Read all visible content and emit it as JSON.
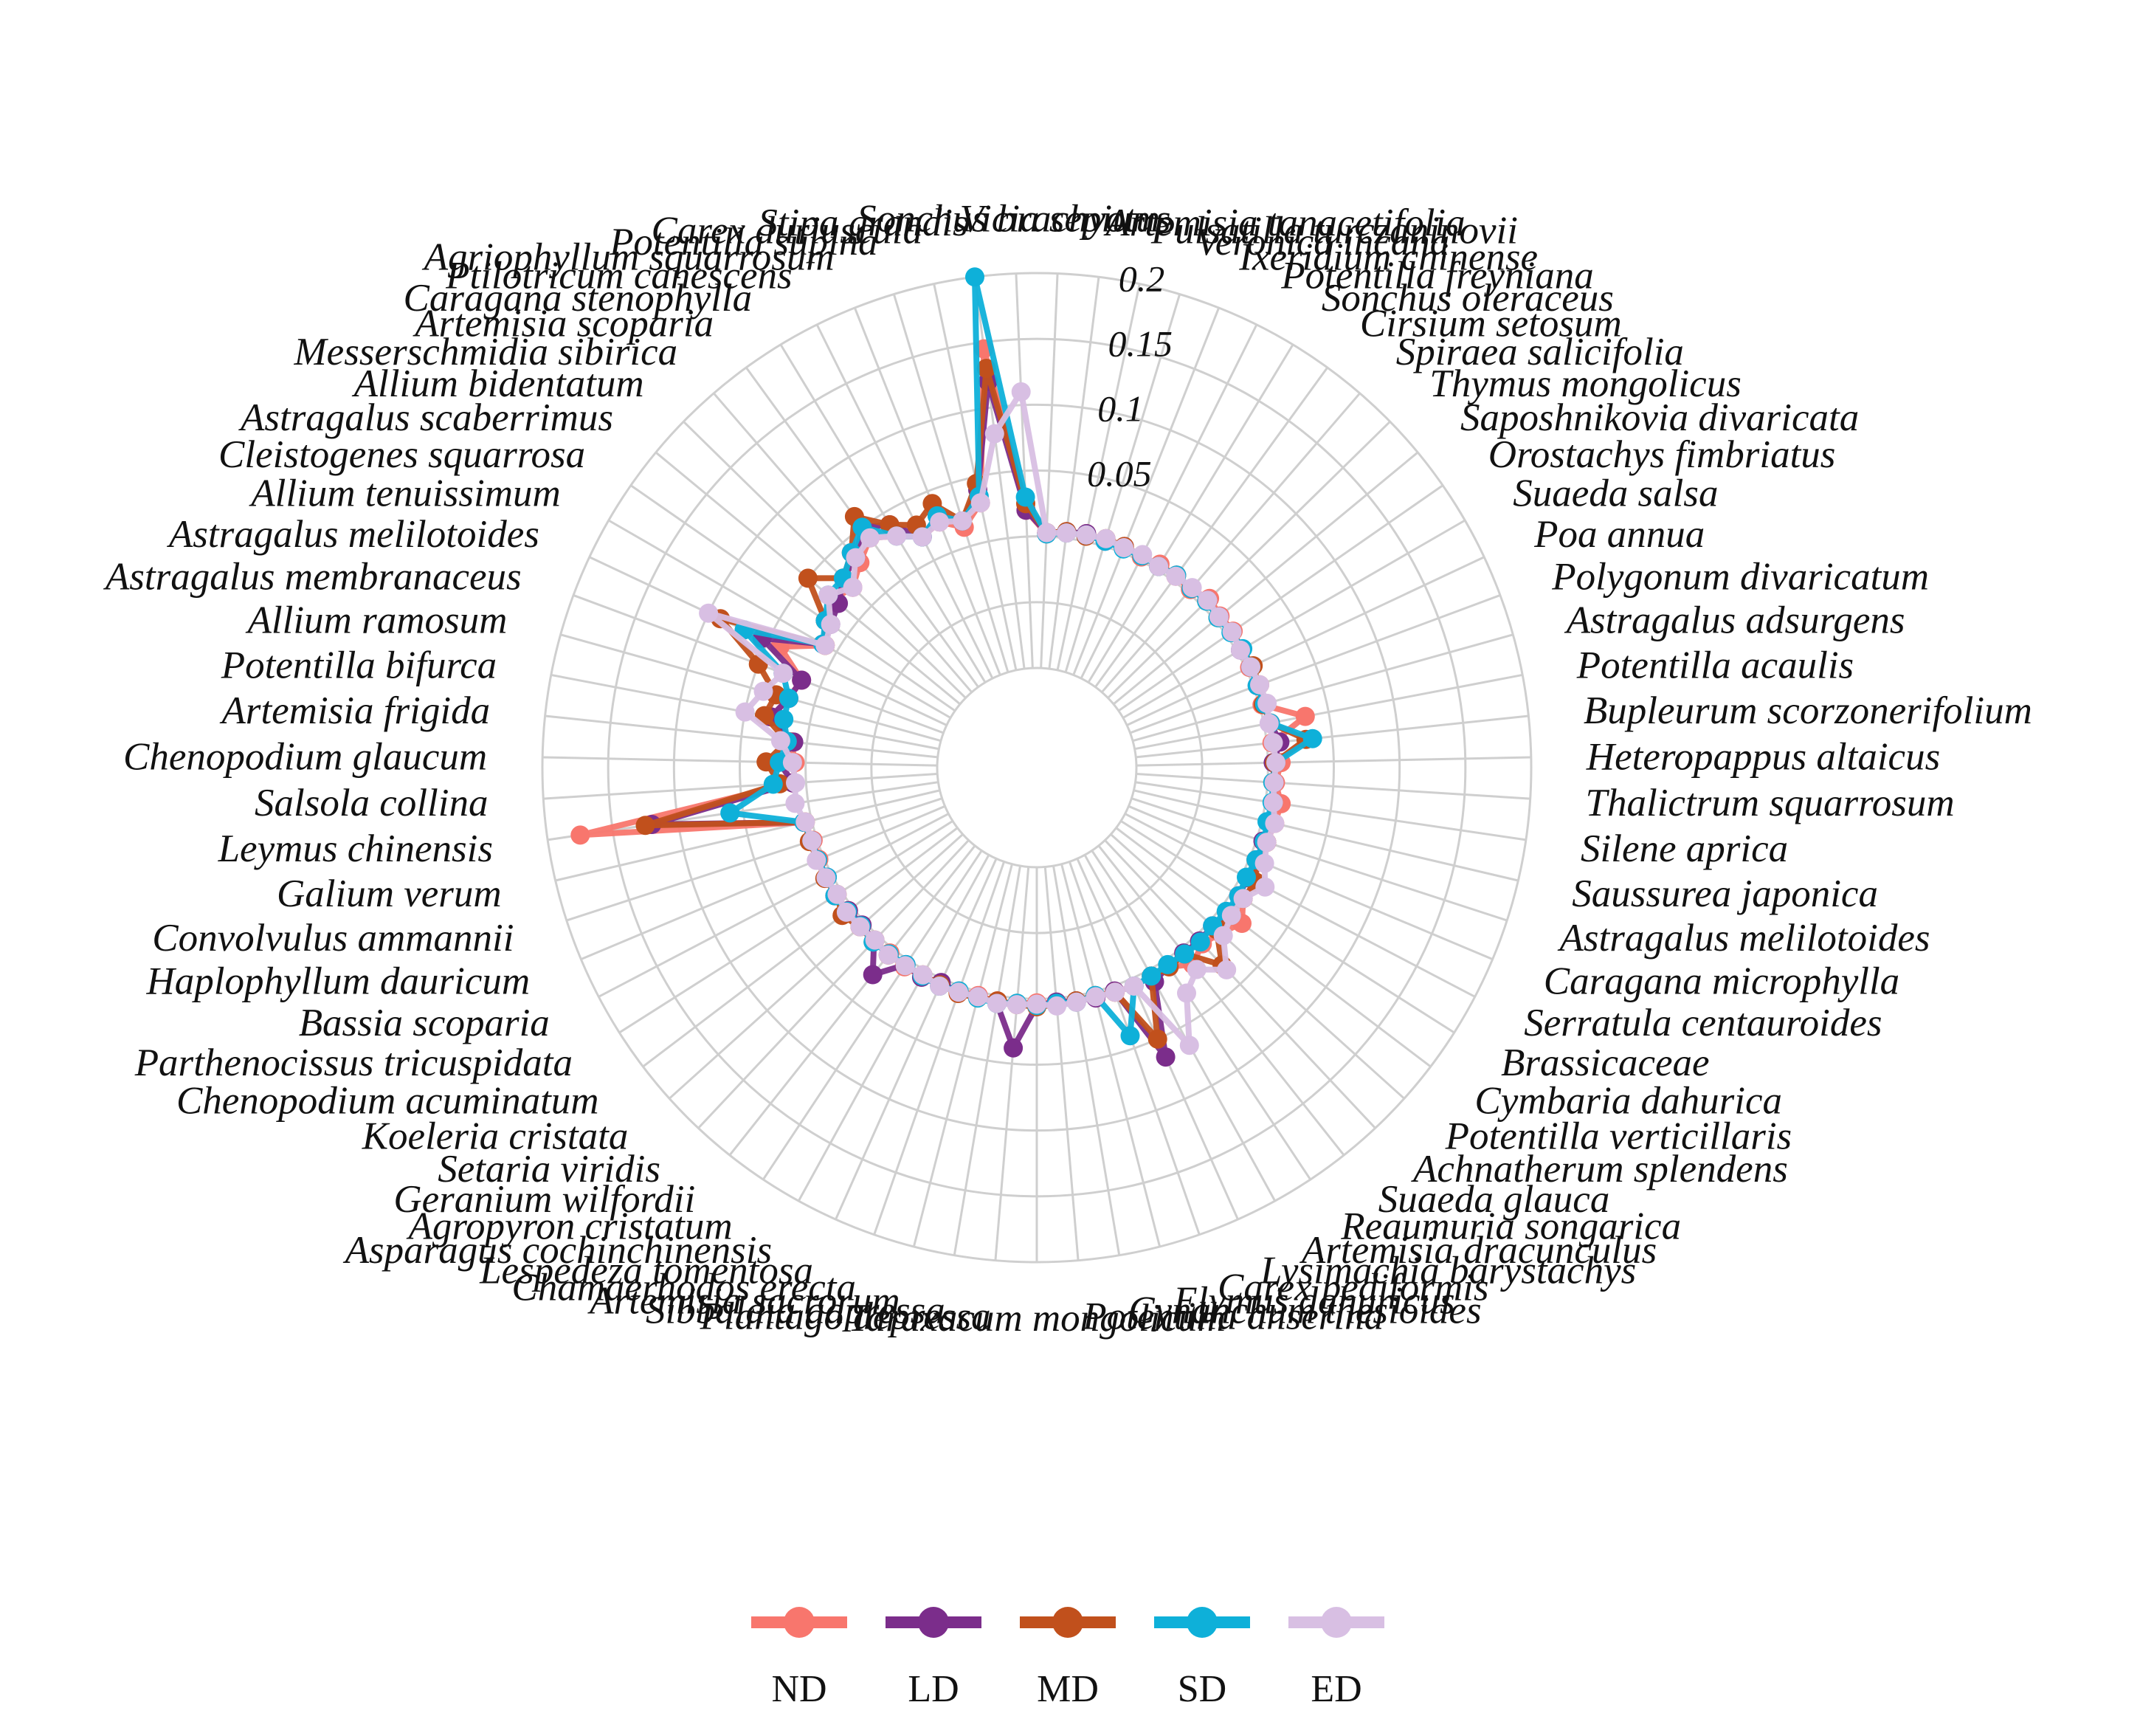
{
  "chart_data": {
    "type": "radar",
    "title": "",
    "rlim": [
      -0.1,
      0.2
    ],
    "r_ticks": [
      {
        "value": 0.05,
        "label": "0.05"
      },
      {
        "value": 0.1,
        "label": "0.1"
      },
      {
        "value": 0.15,
        "label": "0.15"
      },
      {
        "value": 0.2,
        "label": "0.2"
      }
    ],
    "grid": true,
    "legend_position": "bottom",
    "categories": [
      "Vicia sepium",
      "Artemisia tanacetifolia",
      "Pulsatilla turczaninovii",
      "Veronica incana",
      "Ixeridium chinense",
      "Potentilla freyniana",
      "Sonchus oleraceus",
      "Cirsium setosum",
      "Spiraea salicifolia",
      "Thymus mongolicus",
      "Saposhnikovia divaricata",
      "Orostachys fimbriatus",
      "Suaeda salsa",
      "Poa annua",
      "Polygonum divaricatum",
      "Astragalus adsurgens",
      "Potentilla acaulis",
      "Bupleurum scorzonerifolium",
      "Heteropappus altaicus",
      "Thalictrum squarrosum",
      "Silene aprica",
      "Saussurea japonica",
      "Astragalus melilotoides",
      "Caragana microphylla",
      "Serratula centauroides",
      "Brassicaceae",
      "Cymbaria dahurica",
      "Potentilla verticillaris",
      "Achnatherum splendens",
      "Suaeda glauca",
      "Reaumuria songarica",
      "Artemisia dracunculus",
      "Lysimachia barystachys",
      "Carex pediformis",
      "Elymus dahuricus",
      "Cynanchum thesioides",
      "Potentilla anserina",
      "Taraxacum mongolicum",
      "Plantago depressa",
      "Sibbaldia adpressa",
      "Artemisia sacrorum",
      "Chamaerhodos erecta",
      "Lespedeza tomentosa",
      "Asparagus cochinchinensis",
      "Agropyron cristatum",
      "Geranium wilfordii",
      "Setaria viridis",
      "Koeleria cristata",
      "Chenopodium acuminatum",
      "Parthenocissus tricuspidata",
      "Bassia scoparia",
      "Haplophyllum dauricum",
      "Convolvulus ammannii",
      "Galium verum",
      "Leymus chinensis",
      "Salsola collina",
      "Chenopodium glaucum",
      "Artemisia frigida",
      "Potentilla bifurca",
      "Allium ramosum",
      "Astragalus membranaceus",
      "Astragalus melilotoides",
      "Allium tenuissimum",
      "Cleistogenes squarrosa",
      "Astragalus scaberrimus",
      "Allium bidentatum",
      "Messerschmidia sibirica",
      "Artemisia scoparia",
      "Caragana stenophylla",
      "Ptilotricum canescens",
      "Agriophyllum squarrosum",
      "Potentilla supina",
      "Carex duriuscula",
      "Stipa grandis",
      "Sonchus brachyotus"
    ],
    "series": [
      {
        "name": "ND",
        "color": "#F8766D",
        "values": [
          0.002,
          0.004,
          0.006,
          0.005,
          0.004,
          0.003,
          0.005,
          0.004,
          0.003,
          0.008,
          0.005,
          0.006,
          0.004,
          0.003,
          0.005,
          0.002,
          0.032,
          0.004,
          0.01,
          0.006,
          0.012,
          0.01,
          0.008,
          0.006,
          0.012,
          0.01,
          0.02,
          0.012,
          0.008,
          0.015,
          0.006,
          0.005,
          0.006,
          0.005,
          0.004,
          0.005,
          0.004,
          0.003,
          0.004,
          0.005,
          0.003,
          0.004,
          0.006,
          0.005,
          0.006,
          0.004,
          0.006,
          0.005,
          0.004,
          0.006,
          0.005,
          0.004,
          0.003,
          0.006,
          0.175,
          0.01,
          0.008,
          0.012,
          0.03,
          0.02,
          0.015,
          0.04,
          0.01,
          0.02,
          0.025,
          0.02,
          0.03,
          0.04,
          0.03,
          0.02,
          0.025,
          0.015,
          0.03,
          0.145,
          0.02
        ]
      },
      {
        "name": "LD",
        "color": "#7B2D8B",
        "values": [
          0.003,
          0.005,
          0.006,
          0.004,
          0.005,
          0.004,
          0.003,
          0.005,
          0.004,
          0.006,
          0.004,
          0.005,
          0.003,
          0.004,
          0.003,
          0.004,
          0.005,
          0.01,
          0.004,
          0.005,
          0.006,
          0.007,
          0.005,
          0.006,
          0.005,
          0.006,
          0.008,
          0.004,
          0.005,
          0.004,
          0.005,
          0.01,
          0.065,
          0.004,
          0.005,
          0.004,
          0.003,
          0.005,
          0.038,
          0.006,
          0.004,
          0.005,
          0.003,
          0.006,
          0.004,
          0.025,
          0.005,
          0.003,
          0.004,
          0.006,
          0.004,
          0.005,
          0.004,
          0.006,
          0.12,
          0.01,
          0.02,
          0.01,
          0.03,
          0.02,
          0.015,
          0.055,
          0.012,
          0.015,
          0.02,
          0.03,
          0.035,
          0.05,
          0.04,
          0.02,
          0.03,
          0.02,
          0.04,
          0.12,
          0.02
        ]
      },
      {
        "name": "MD",
        "color": "#C1501C",
        "values": [
          0.003,
          0.005,
          0.004,
          0.006,
          0.005,
          0.004,
          0.003,
          0.005,
          0.004,
          0.005,
          0.003,
          0.005,
          0.004,
          0.006,
          0.004,
          0.003,
          0.005,
          0.03,
          0.005,
          0.004,
          0.006,
          0.005,
          0.008,
          0.005,
          0.012,
          0.01,
          0.01,
          0.008,
          0.03,
          0.005,
          0.006,
          0.005,
          0.05,
          0.005,
          0.003,
          0.004,
          0.005,
          0.006,
          0.005,
          0.004,
          0.005,
          0.006,
          0.005,
          0.004,
          0.005,
          0.006,
          0.004,
          0.005,
          0.01,
          0.004,
          0.006,
          0.005,
          0.006,
          0.005,
          0.125,
          0.02,
          0.03,
          0.015,
          0.035,
          0.03,
          0.05,
          0.09,
          0.01,
          0.02,
          0.05,
          0.03,
          0.04,
          0.06,
          0.04,
          0.03,
          0.04,
          0.02,
          0.045,
          0.13,
          0.025
        ]
      },
      {
        "name": "SD",
        "color": "#0EB0D9",
        "values": [
          0.002,
          0.004,
          0.005,
          0.004,
          0.003,
          0.004,
          0.003,
          0.005,
          0.004,
          0.005,
          0.003,
          0.004,
          0.005,
          0.004,
          0.003,
          0.004,
          0.005,
          0.035,
          0.006,
          0.004,
          0.005,
          0.004,
          0.006,
          0.005,
          0.004,
          0.006,
          0.005,
          0.004,
          0.006,
          0.005,
          0.004,
          0.005,
          0.006,
          0.04,
          0.003,
          0.005,
          0.004,
          0.005,
          0.004,
          0.006,
          0.005,
          0.004,
          0.006,
          0.005,
          0.004,
          0.005,
          0.006,
          0.004,
          0.005,
          0.006,
          0.004,
          0.005,
          0.004,
          0.006,
          0.06,
          0.025,
          0.02,
          0.015,
          0.02,
          0.02,
          0.03,
          0.07,
          0.012,
          0.02,
          0.03,
          0.03,
          0.04,
          0.05,
          0.03,
          0.02,
          0.03,
          0.02,
          0.035,
          0.2,
          0.03
        ]
      },
      {
        "name": "ED",
        "color": "#D8BFE3",
        "values": [
          0.003,
          0.004,
          0.005,
          0.006,
          0.004,
          0.005,
          0.003,
          0.004,
          0.005,
          0.006,
          0.004,
          0.005,
          0.003,
          0.004,
          0.005,
          0.006,
          0.004,
          0.005,
          0.006,
          0.005,
          0.006,
          0.01,
          0.008,
          0.012,
          0.02,
          0.01,
          0.01,
          0.015,
          0.035,
          0.02,
          0.03,
          0.065,
          0.006,
          0.005,
          0.004,
          0.005,
          0.006,
          0.004,
          0.005,
          0.006,
          0.004,
          0.005,
          0.006,
          0.004,
          0.005,
          0.006,
          0.004,
          0.005,
          0.006,
          0.004,
          0.005,
          0.006,
          0.004,
          0.005,
          0.01,
          0.008,
          0.01,
          0.02,
          0.05,
          0.04,
          0.03,
          0.1,
          0.01,
          0.015,
          0.03,
          0.02,
          0.035,
          0.04,
          0.03,
          0.02,
          0.025,
          0.02,
          0.03,
          0.08,
          0.11
        ]
      }
    ]
  }
}
